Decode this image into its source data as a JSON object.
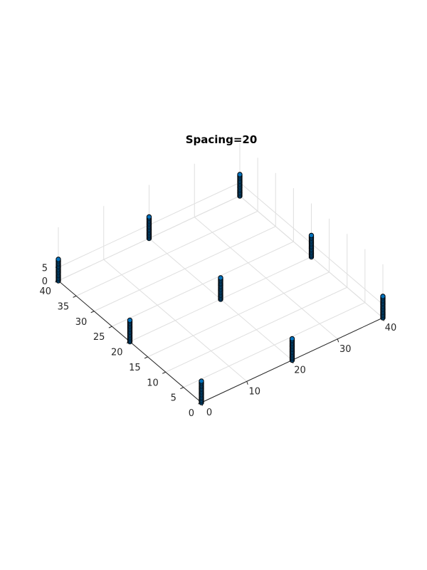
{
  "chart_data": {
    "type": "scatter",
    "title": "Spacing=20",
    "xlabel": "",
    "ylabel": "",
    "zlabel": "",
    "xlim": [
      0,
      40
    ],
    "ylim": [
      0,
      40
    ],
    "zlim": [
      0,
      8
    ],
    "x_ticks": [
      "0",
      "10",
      "20",
      "30",
      "40"
    ],
    "y_ticks": [
      "0",
      "5",
      "10",
      "15",
      "20",
      "25",
      "30",
      "35",
      "40"
    ],
    "z_ticks": [
      "0",
      "5"
    ],
    "grid": true,
    "view": "3d",
    "marker_face_color": "#0072bd",
    "marker_edge_color": "#000000",
    "series": [
      {
        "x": [
          0,
          0,
          0,
          20,
          20,
          20,
          40,
          40,
          40
        ],
        "y": [
          0,
          20,
          40,
          0,
          20,
          40,
          0,
          20,
          40
        ],
        "z_levels": [
          0,
          0.5,
          1,
          1.5,
          2,
          2.5,
          3,
          3.5,
          4,
          4.5,
          5,
          5.5,
          6,
          6.5,
          7,
          7.5,
          8
        ]
      }
    ]
  }
}
